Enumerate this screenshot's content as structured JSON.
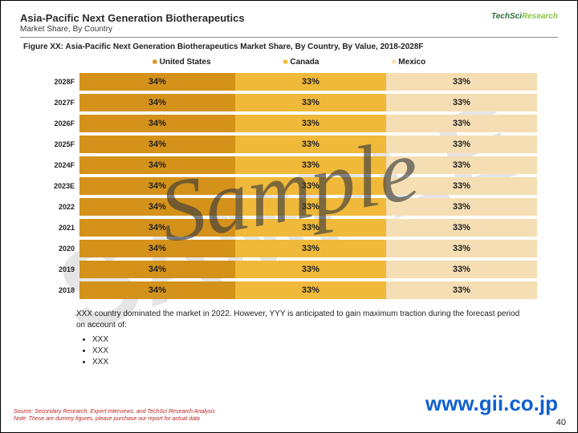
{
  "header": {
    "title": "Asia-Pacific Next Generation Biotherapeutics",
    "subtitle": "Market Share, By Country",
    "logo_main": "TechSci",
    "logo_sub": "Research"
  },
  "figure_caption": "Figure XX: Asia-Pacific Next Generation Biotherapeutics Market Share, By Country, By Value, 2018-2028F",
  "legend": {
    "us": "United   States",
    "ca": "Canada",
    "mx": "Mexico"
  },
  "chart": {
    "colors": {
      "us": "#d4921a",
      "ca": "#f0b93a",
      "mx": "#f5deb3"
    },
    "rows": [
      {
        "year": "2028F",
        "us": "34%",
        "ca": "33%",
        "mx": "33%"
      },
      {
        "year": "2027F",
        "us": "34%",
        "ca": "33%",
        "mx": "33%"
      },
      {
        "year": "2026F",
        "us": "34%",
        "ca": "33%",
        "mx": "33%"
      },
      {
        "year": "2025F",
        "us": "34%",
        "ca": "33%",
        "mx": "33%"
      },
      {
        "year": "2024F",
        "us": "34%",
        "ca": "33%",
        "mx": "33%"
      },
      {
        "year": "2023E",
        "us": "34%",
        "ca": "33%",
        "mx": "33%"
      },
      {
        "year": "2022",
        "us": "34%",
        "ca": "33%",
        "mx": "33%"
      },
      {
        "year": "2021",
        "us": "34%",
        "ca": "33%",
        "mx": "33%"
      },
      {
        "year": "2020",
        "us": "34%",
        "ca": "33%",
        "mx": "33%"
      },
      {
        "year": "2019",
        "us": "34%",
        "ca": "33%",
        "mx": "33%"
      },
      {
        "year": "2018",
        "us": "34%",
        "ca": "33%",
        "mx": "33%"
      }
    ]
  },
  "notes": {
    "lead": "XXX country dominated the market in 2022. However, YYY is anticipated to gain maximum traction during the forecast period on account of:",
    "bullets": [
      "XXX",
      "XXX",
      "XXX"
    ]
  },
  "source": {
    "line1": "Source: Secondary Research, Expert Interviews, and TechSci Research Analysis",
    "line2": "Note: These are dummy figures, please purchase our report for actual data"
  },
  "watermark_url": "www.gii.co.jp",
  "watermark_bg": "SAMPLE",
  "watermark_fg": "Sample",
  "page_number": "40"
}
